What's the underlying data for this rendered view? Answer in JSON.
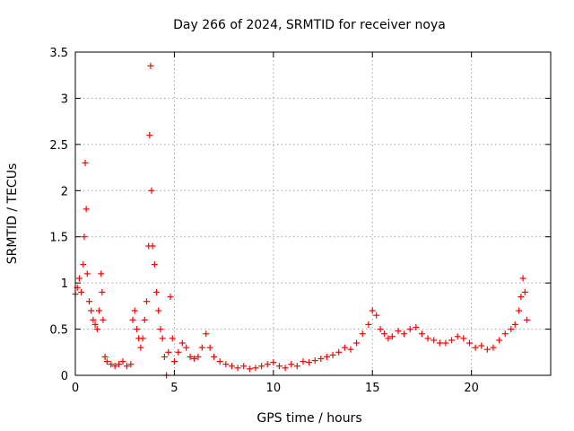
{
  "chart_data": {
    "type": "scatter",
    "title": "Day 266 of 2024, SRMTID for receiver noya",
    "xlabel": "GPS time / hours",
    "ylabel": "SRMTID / TECUs",
    "xlim": [
      0,
      24
    ],
    "ylim": [
      0,
      3.5
    ],
    "x_ticks": [
      0,
      5,
      10,
      15,
      20
    ],
    "x_tick_labels": [
      "0",
      "5",
      "10",
      "15",
      "20"
    ],
    "y_ticks": [
      0,
      0.5,
      1,
      1.5,
      2,
      2.5,
      3,
      3.5
    ],
    "y_tick_labels": [
      "0",
      "0.5",
      "1",
      "1.5",
      "2",
      "2.5",
      "3",
      "3.5"
    ],
    "grid": true,
    "marker": "+",
    "series": [
      {
        "name": "noya",
        "color": "#ff0000",
        "x": [
          0.0,
          0.1,
          0.2,
          0.3,
          0.4,
          0.45,
          0.5,
          0.55,
          0.6,
          0.7,
          0.8,
          0.9,
          1.0,
          1.1,
          1.2,
          1.3,
          1.35,
          1.4,
          1.5,
          1.6,
          1.8,
          2.0,
          2.2,
          2.4,
          2.6,
          2.8,
          2.9,
          3.0,
          3.1,
          3.2,
          3.3,
          3.4,
          3.5,
          3.6,
          3.7,
          3.75,
          3.8,
          3.85,
          3.9,
          4.0,
          4.1,
          4.2,
          4.3,
          4.4,
          4.5,
          4.6,
          4.7,
          4.8,
          4.9,
          5.0,
          5.2,
          5.4,
          5.6,
          5.8,
          6.0,
          6.2,
          6.4,
          6.6,
          6.8,
          7.0,
          7.3,
          7.6,
          7.9,
          8.2,
          8.5,
          8.8,
          9.1,
          9.4,
          9.7,
          10.0,
          10.3,
          10.6,
          10.9,
          11.2,
          11.5,
          11.8,
          12.1,
          12.4,
          12.7,
          13.0,
          13.3,
          13.6,
          13.9,
          14.2,
          14.5,
          14.8,
          15.0,
          15.2,
          15.4,
          15.6,
          15.8,
          16.0,
          16.3,
          16.6,
          16.9,
          17.2,
          17.5,
          17.8,
          18.1,
          18.4,
          18.7,
          19.0,
          19.3,
          19.6,
          19.9,
          20.2,
          20.5,
          20.8,
          21.1,
          21.4,
          21.7,
          22.0,
          22.2,
          22.4,
          22.5,
          22.6,
          22.7,
          22.8
        ],
        "y": [
          0.88,
          0.95,
          1.05,
          0.9,
          1.2,
          1.5,
          2.3,
          1.8,
          1.1,
          0.8,
          0.7,
          0.6,
          0.55,
          0.5,
          0.7,
          1.1,
          0.9,
          0.6,
          0.2,
          0.15,
          0.12,
          0.1,
          0.12,
          0.15,
          0.1,
          0.12,
          0.6,
          0.7,
          0.5,
          0.4,
          0.3,
          0.4,
          0.6,
          0.8,
          1.4,
          2.6,
          3.35,
          2.0,
          1.4,
          1.2,
          0.9,
          0.7,
          0.5,
          0.4,
          0.2,
          0.0,
          0.25,
          0.85,
          0.4,
          0.15,
          0.25,
          0.35,
          0.3,
          0.2,
          0.18,
          0.2,
          0.3,
          0.45,
          0.3,
          0.2,
          0.15,
          0.12,
          0.1,
          0.08,
          0.1,
          0.07,
          0.08,
          0.1,
          0.12,
          0.14,
          0.1,
          0.08,
          0.12,
          0.1,
          0.15,
          0.14,
          0.16,
          0.18,
          0.2,
          0.22,
          0.25,
          0.3,
          0.28,
          0.35,
          0.45,
          0.55,
          0.7,
          0.65,
          0.5,
          0.45,
          0.4,
          0.42,
          0.48,
          0.45,
          0.5,
          0.52,
          0.45,
          0.4,
          0.38,
          0.35,
          0.35,
          0.38,
          0.42,
          0.4,
          0.35,
          0.3,
          0.32,
          0.28,
          0.3,
          0.38,
          0.45,
          0.5,
          0.55,
          0.7,
          0.85,
          1.05,
          0.9,
          0.6
        ]
      }
    ]
  }
}
